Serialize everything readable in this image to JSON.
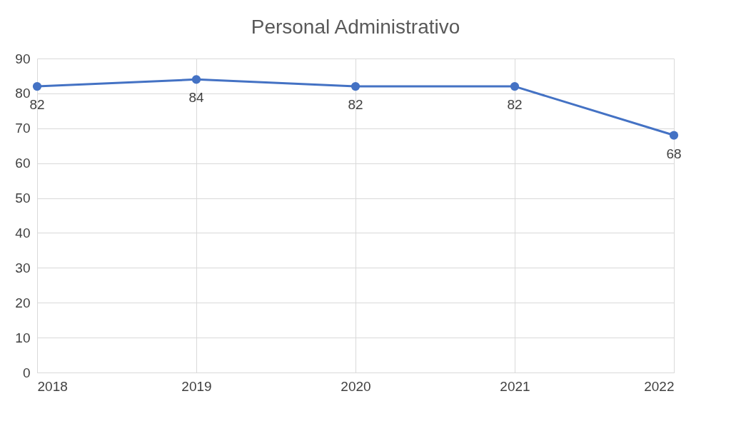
{
  "chart_data": {
    "type": "line",
    "title": "Personal Administrativo",
    "categories": [
      "2018",
      "2019",
      "2020",
      "2021",
      "2022"
    ],
    "series": [
      {
        "color": "#4472c4",
        "values": [
          82,
          84,
          82,
          82,
          68
        ]
      }
    ],
    "ylim": [
      0,
      90
    ],
    "yticks": [
      0,
      10,
      20,
      30,
      40,
      50,
      60,
      70,
      80,
      90
    ],
    "grid": true,
    "data_labels": true,
    "marker": "circle",
    "line_style": "solid"
  }
}
